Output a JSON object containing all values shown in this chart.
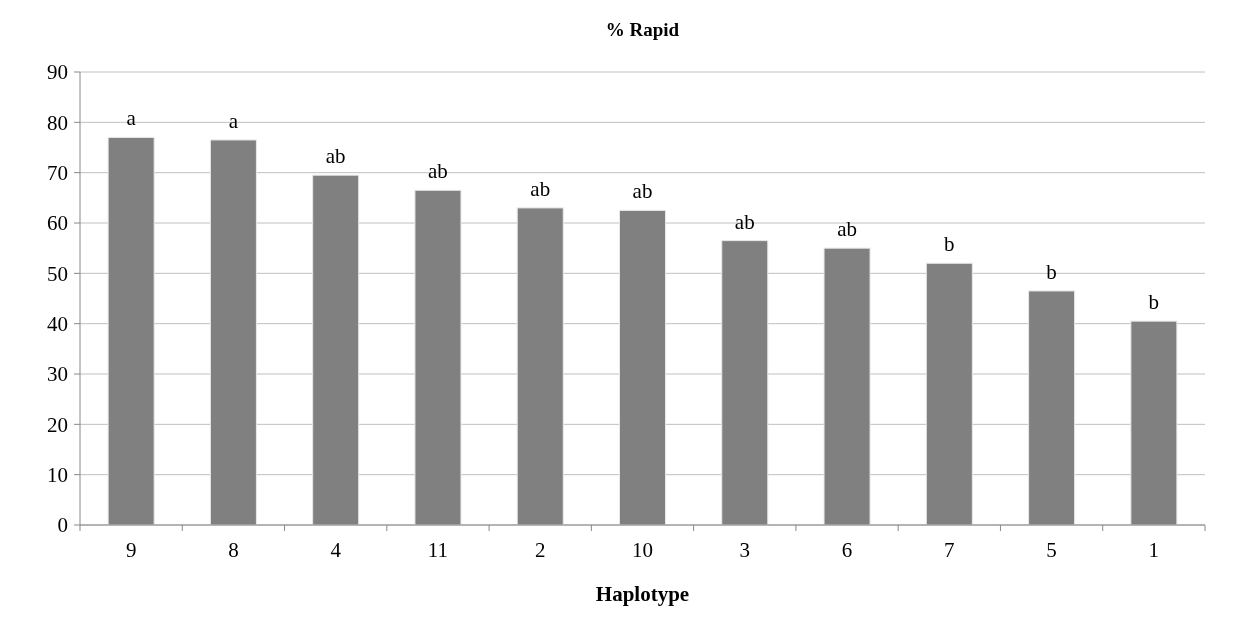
{
  "chart_data": {
    "type": "bar",
    "title": "% Rapid",
    "xlabel": "Haplotype",
    "categories": [
      "9",
      "8",
      "4",
      "11",
      "2",
      "10",
      "3",
      "6",
      "7",
      "5",
      "1"
    ],
    "values": [
      77,
      76.5,
      69.5,
      66.5,
      63,
      62.5,
      56.5,
      55,
      52,
      46.5,
      40.5
    ],
    "color": "#808080",
    "ylim": [
      0,
      90
    ],
    "yticks": [
      0,
      10,
      20,
      30,
      40,
      50,
      60,
      70,
      80,
      90
    ],
    "grid": "y",
    "annotations": [
      {
        "text": "a",
        "x": "9",
        "y": 77
      },
      {
        "text": "a",
        "x": "8",
        "y": 76.5
      },
      {
        "text": "ab",
        "x": "4",
        "y": 69.5
      },
      {
        "text": "ab",
        "x": "11",
        "y": 66.5
      },
      {
        "text": "ab",
        "x": "2",
        "y": 63
      },
      {
        "text": "ab",
        "x": "10",
        "y": 62.5
      },
      {
        "text": "ab",
        "x": "3",
        "y": 56.5
      },
      {
        "text": "ab",
        "x": "6",
        "y": 55
      },
      {
        "text": "b",
        "x": "7",
        "y": 52
      },
      {
        "text": "b",
        "x": "5",
        "y": 46.5
      },
      {
        "text": "b",
        "x": "1",
        "y": 40.5
      }
    ]
  }
}
